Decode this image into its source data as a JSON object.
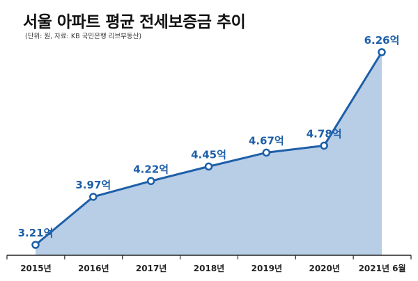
{
  "chart_data": {
    "type": "area",
    "title": "서울 아파트 평균 전세보증금 추이",
    "subtitle": "(단위: 원, 자료: KB 국민은행 리브부동산)",
    "categories": [
      "2015년",
      "2016년",
      "2017년",
      "2018년",
      "2019년",
      "2020년",
      "2021년 6월"
    ],
    "series": [
      {
        "values": [
          3.21,
          3.97,
          4.22,
          4.45,
          4.67,
          4.78,
          6.26
        ],
        "labels": [
          "3.21억",
          "3.97억",
          "4.22억",
          "4.45억",
          "4.67억",
          "4.78억",
          "6.26억"
        ]
      }
    ],
    "grid": false,
    "colors": {
      "line": "#1d5fa8",
      "fill": "#b8cde6",
      "label": "#1d5fa8",
      "axis": "#222222"
    }
  }
}
